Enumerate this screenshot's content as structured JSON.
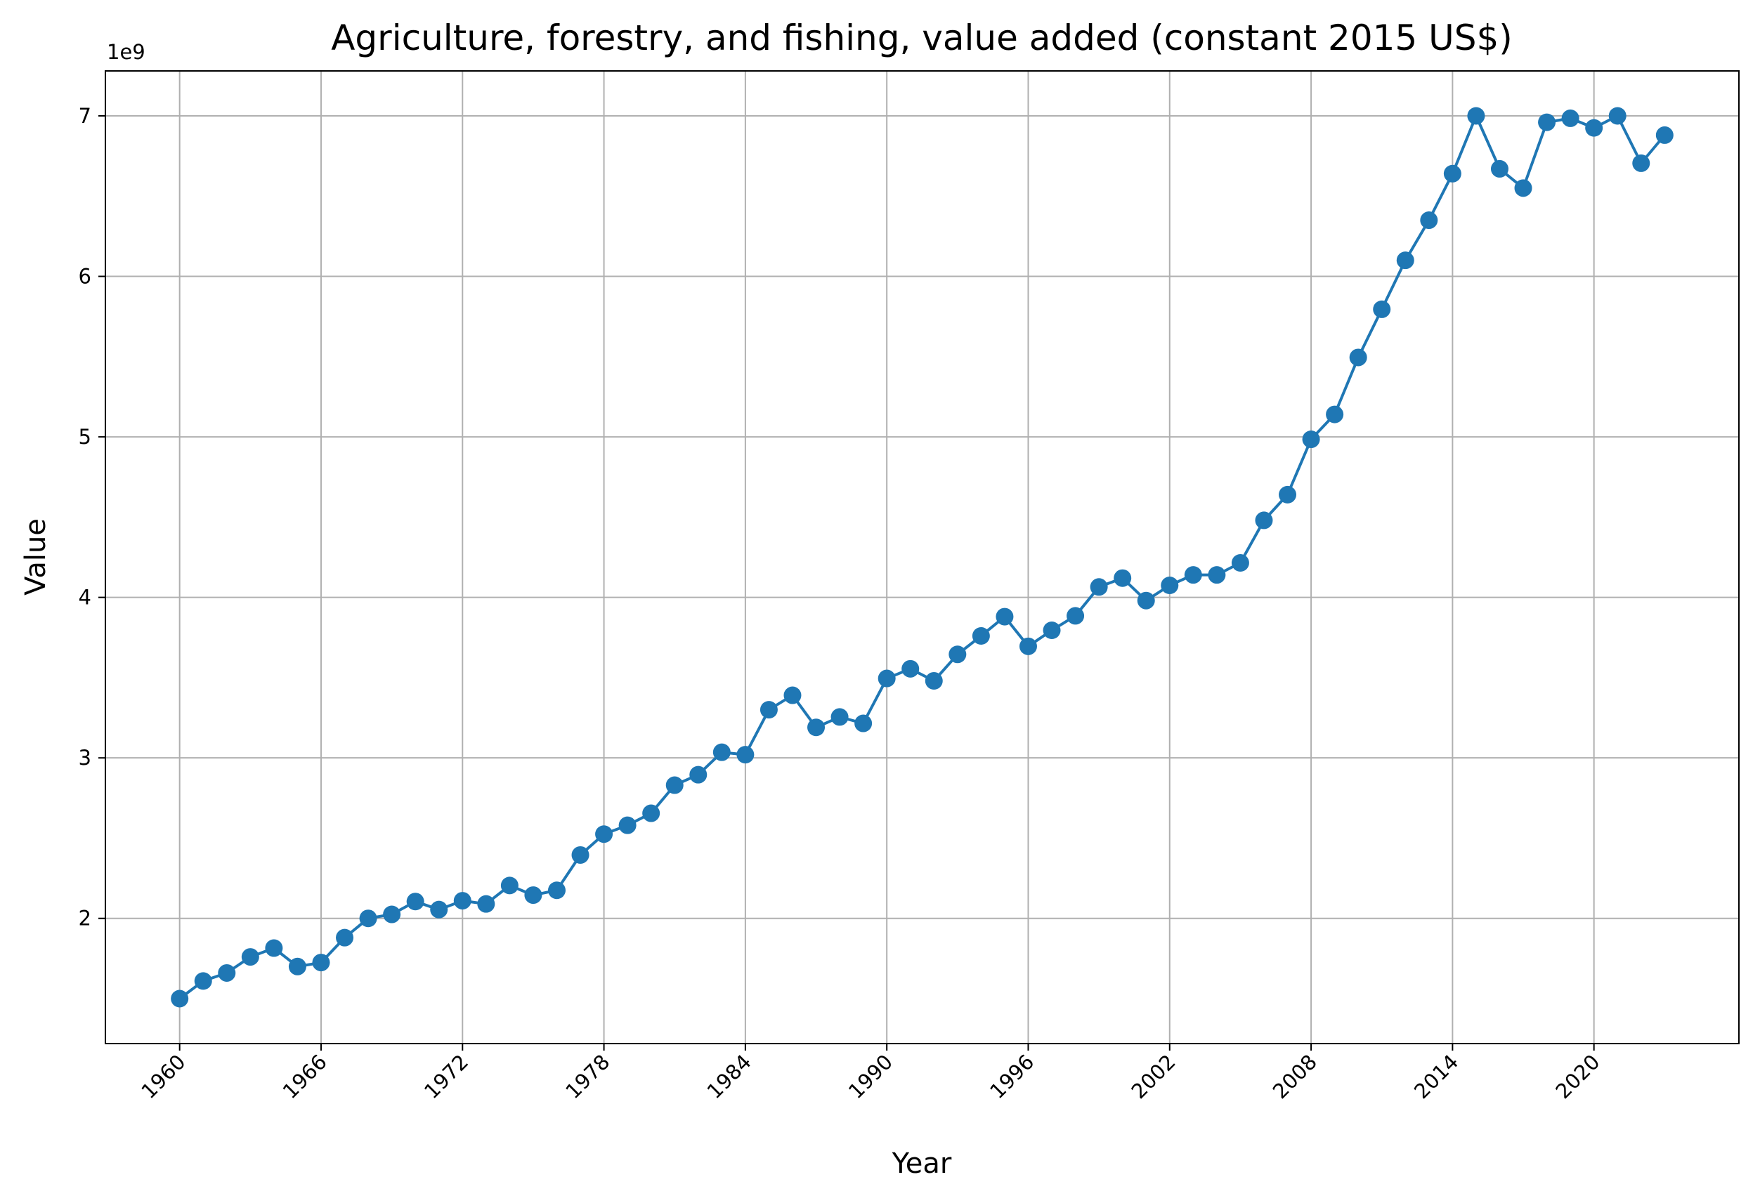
{
  "chart_data": {
    "type": "line",
    "title": "Agriculture, forestry, and fishing, value added (constant 2015 US$)",
    "xlabel": "Year",
    "ylabel": "Value",
    "y_offset_label": "1e9",
    "y_scale": 1000000000,
    "xlim": [
      1956.85,
      2026.15
    ],
    "ylim": [
      1220000000,
      7280000000
    ],
    "x_ticks": [
      1960,
      1966,
      1972,
      1978,
      1984,
      1990,
      1996,
      2002,
      2008,
      2014,
      2020
    ],
    "y_ticks": [
      2,
      3,
      4,
      5,
      6,
      7
    ],
    "grid": true,
    "marker": "circle",
    "color": "#1f77b4",
    "series": [
      {
        "x": [
          1960,
          1961,
          1962,
          1963,
          1964,
          1965,
          1966,
          1967,
          1968,
          1969,
          1970,
          1971,
          1972,
          1973,
          1974,
          1975,
          1976,
          1977,
          1978,
          1979,
          1980,
          1981,
          1982,
          1983,
          1984,
          1985,
          1986,
          1987,
          1988,
          1989,
          1990,
          1991,
          1992,
          1993,
          1994,
          1995,
          1996,
          1997,
          1998,
          1999,
          2000,
          2001,
          2002,
          2003,
          2004,
          2005,
          2006,
          2007,
          2008,
          2009,
          2010,
          2011,
          2012,
          2013,
          2014,
          2015,
          2016,
          2017,
          2018,
          2019,
          2020,
          2021,
          2022,
          2023
        ],
        "values": [
          1500000000,
          1610000000,
          1660000000,
          1760000000,
          1815000000,
          1700000000,
          1725000000,
          1880000000,
          2000000000,
          2025000000,
          2105000000,
          2055000000,
          2110000000,
          2090000000,
          2205000000,
          2145000000,
          2175000000,
          2395000000,
          2525000000,
          2580000000,
          2655000000,
          2830000000,
          2895000000,
          3035000000,
          3020000000,
          3300000000,
          3390000000,
          3190000000,
          3255000000,
          3215000000,
          3495000000,
          3555000000,
          3480000000,
          3645000000,
          3760000000,
          3880000000,
          3695000000,
          3795000000,
          3885000000,
          4065000000,
          4120000000,
          3980000000,
          4075000000,
          4140000000,
          4140000000,
          4215000000,
          4480000000,
          4640000000,
          4985000000,
          5140000000,
          5495000000,
          5795000000,
          6100000000,
          6350000000,
          6640000000,
          7000000000,
          6670000000,
          6550000000,
          6960000000,
          6985000000,
          6925000000,
          7000000000,
          6705000000,
          6880000000
        ]
      }
    ]
  }
}
